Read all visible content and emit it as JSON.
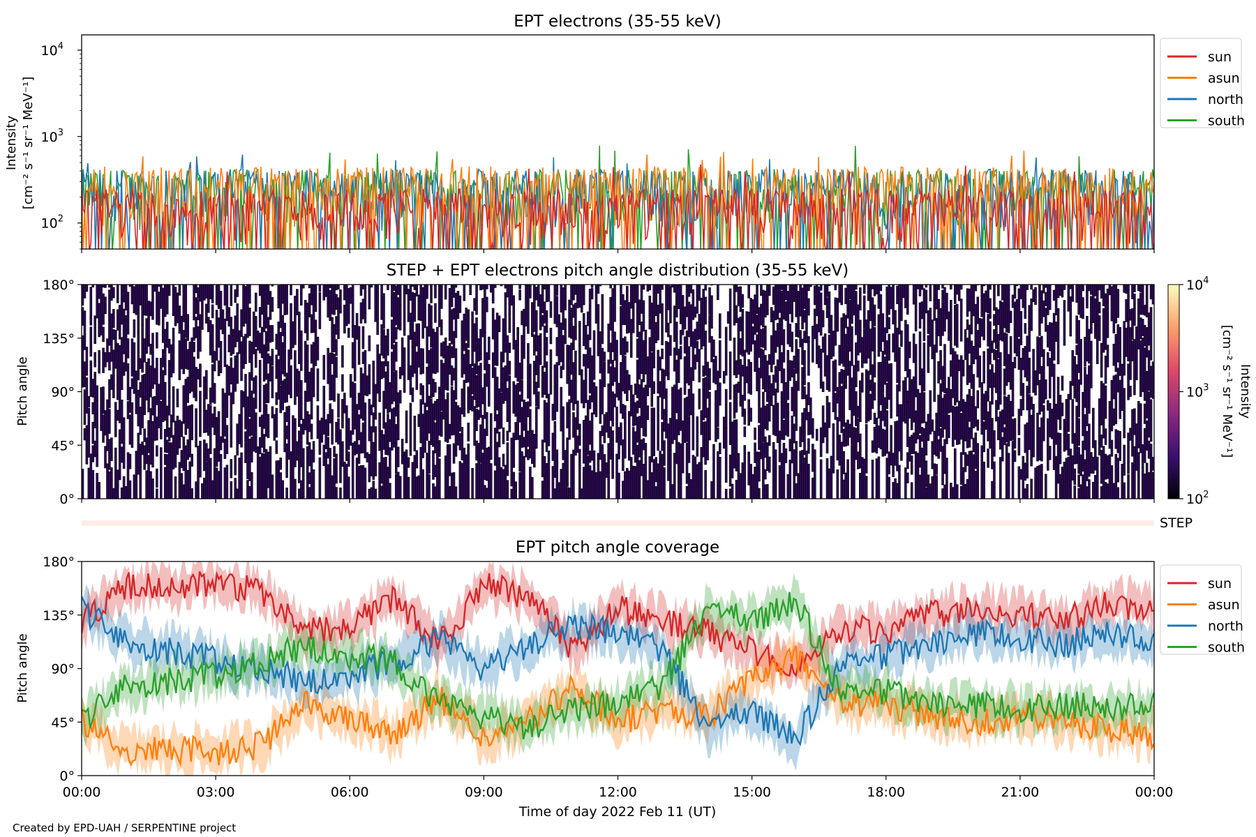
{
  "credit": "Created by EPD-UAH / SERPENTINE project",
  "colors": {
    "sun": "#d62728",
    "asun": "#ff7f0e",
    "north": "#1f77b4",
    "south": "#2ca02c",
    "step_strip": "#fdeee8",
    "pad_fill": "#2d0a56",
    "pad_line": "#000000"
  },
  "chart_data": [
    {
      "id": "intensity",
      "type": "line",
      "title": "EPT electrons (35-55 keV)",
      "ylabel": "Intensity",
      "ylabel_units": "[cm⁻² s⁻¹ sr⁻¹ MeV⁻¹]",
      "yscale": "log",
      "ylim": [
        50,
        15000
      ],
      "yticks": [
        {
          "value": 100,
          "base": "10",
          "exp": "2"
        },
        {
          "value": 1000,
          "base": "10",
          "exp": "3"
        },
        {
          "value": 10000,
          "base": "10",
          "exp": "4"
        }
      ],
      "xlim_hours": [
        0,
        24
      ],
      "legend": {
        "position": "top-right",
        "entries": [
          "sun",
          "asun",
          "north",
          "south"
        ]
      },
      "series": [
        {
          "name": "sun",
          "typical_range": [
            55,
            250
          ],
          "peak": 500
        },
        {
          "name": "asun",
          "typical_range": [
            90,
            450
          ],
          "peak": 700
        },
        {
          "name": "north",
          "typical_range": [
            80,
            420
          ],
          "peak": 640
        },
        {
          "name": "south",
          "typical_range": [
            80,
            420
          ],
          "peak": 800
        }
      ]
    },
    {
      "id": "pad",
      "type": "heatmap",
      "title": "STEP + EPT electrons pitch angle distribution (35-55 keV)",
      "ylabel": "Pitch angle",
      "ylim": [
        0,
        180
      ],
      "yticks": [
        "0°",
        "45°",
        "90°",
        "135°",
        "180°"
      ],
      "yticks_values": [
        0,
        45,
        90,
        135,
        180
      ],
      "xlim_hours": [
        0,
        24
      ],
      "colorbar": {
        "label": "Intensity",
        "units": "[cm⁻² s⁻¹ sr⁻¹ MeV⁻¹]",
        "scale": "log",
        "range": [
          100,
          10000
        ],
        "ticks": [
          {
            "value": 100,
            "base": "10",
            "exp": "2"
          },
          {
            "value": 1000,
            "base": "10",
            "exp": "3"
          },
          {
            "value": 10000,
            "base": "10",
            "exp": "4"
          }
        ],
        "colors": [
          "#000004",
          "#3b0f70",
          "#8c2981",
          "#de4968",
          "#fe9f6d",
          "#fcfdbf"
        ]
      },
      "dominant_intensity": 150
    },
    {
      "id": "step",
      "type": "heatmap",
      "label": "STEP"
    },
    {
      "id": "coverage",
      "type": "line",
      "title": "EPT pitch angle coverage",
      "ylabel": "Pitch angle",
      "ylim": [
        0,
        180
      ],
      "yticks": [
        "0°",
        "45°",
        "90°",
        "135°",
        "180°"
      ],
      "yticks_values": [
        0,
        45,
        90,
        135,
        180
      ],
      "xlabel": "Time of day 2022 Feb 11 (UT)",
      "xlim_hours": [
        0,
        24
      ],
      "xticks": [
        "00:00",
        "03:00",
        "06:00",
        "09:00",
        "12:00",
        "15:00",
        "18:00",
        "21:00",
        "00:00"
      ],
      "xticks_hours": [
        0,
        3,
        6,
        9,
        12,
        15,
        18,
        21,
        24
      ],
      "legend": {
        "position": "top-right",
        "entries": [
          "sun",
          "asun",
          "north",
          "south"
        ]
      },
      "band_halfwidth_deg": 15,
      "series": [
        {
          "name": "sun",
          "hours": [
            0,
            1,
            2,
            3,
            4,
            5,
            6,
            7,
            8,
            9,
            10,
            11,
            12,
            13,
            14,
            15,
            16,
            17,
            18,
            19,
            20,
            21,
            22,
            23,
            24
          ],
          "values": [
            130,
            160,
            158,
            162,
            155,
            120,
            125,
            150,
            110,
            160,
            150,
            105,
            140,
            130,
            120,
            105,
            90,
            125,
            120,
            135,
            140,
            135,
            130,
            145,
            140
          ]
        },
        {
          "name": "asun",
          "hours": [
            0,
            1,
            2,
            3,
            4,
            5,
            6,
            7,
            8,
            9,
            10,
            11,
            12,
            13,
            14,
            15,
            16,
            17,
            18,
            19,
            20,
            21,
            22,
            23,
            24
          ],
          "values": [
            45,
            20,
            22,
            20,
            25,
            60,
            50,
            35,
            65,
            30,
            45,
            75,
            45,
            55,
            50,
            80,
            100,
            60,
            60,
            50,
            45,
            50,
            45,
            40,
            35
          ]
        },
        {
          "name": "north",
          "hours": [
            0,
            1,
            2,
            3,
            4,
            5,
            6,
            7,
            8,
            9,
            10,
            11,
            12,
            13,
            14,
            15,
            16,
            17,
            18,
            19,
            20,
            21,
            22,
            23,
            24
          ],
          "values": [
            140,
            110,
            105,
            98,
            90,
            80,
            85,
            95,
            115,
            90,
            110,
            125,
            120,
            105,
            40,
            55,
            30,
            95,
            100,
            110,
            120,
            115,
            110,
            120,
            110
          ]
        },
        {
          "name": "south",
          "hours": [
            0,
            1,
            2,
            3,
            4,
            5,
            6,
            7,
            8,
            9,
            10,
            11,
            12,
            13,
            14,
            15,
            16,
            17,
            18,
            19,
            20,
            21,
            22,
            23,
            24
          ],
          "values": [
            45,
            75,
            80,
            85,
            95,
            110,
            100,
            95,
            60,
            50,
            40,
            55,
            60,
            75,
            140,
            130,
            145,
            70,
            70,
            60,
            60,
            55,
            60,
            55,
            60
          ]
        }
      ]
    }
  ]
}
